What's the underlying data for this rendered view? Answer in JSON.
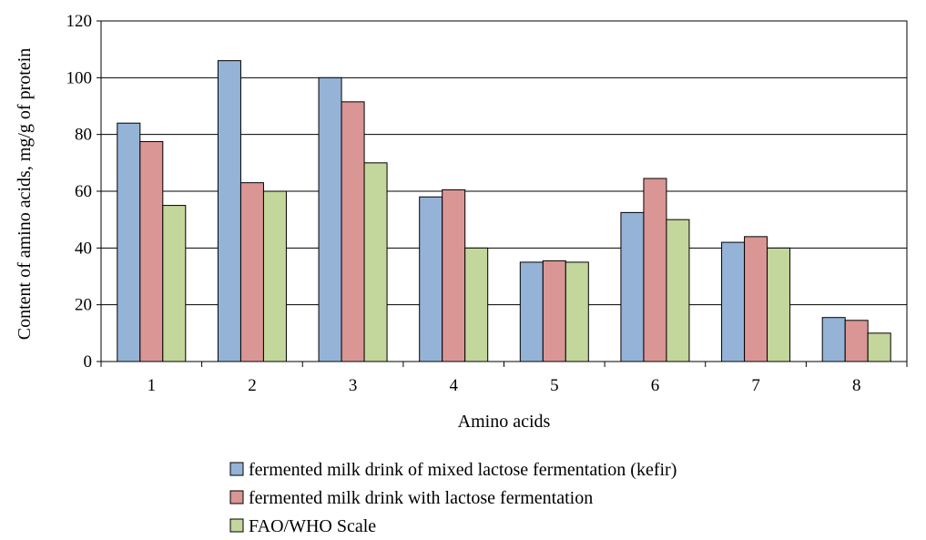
{
  "chart_data": {
    "type": "bar",
    "title": "",
    "xlabel": "Amino acids",
    "ylabel": "Content of amino acids, mg/g of protein",
    "categories": [
      "1",
      "2",
      "3",
      "4",
      "5",
      "6",
      "7",
      "8"
    ],
    "ylim": [
      0,
      120
    ],
    "yticks": [
      0,
      20,
      40,
      60,
      80,
      100,
      120
    ],
    "grid": true,
    "legend_position": "bottom",
    "series": [
      {
        "name": "fermented milk drink of mixed lactose fermentation (kefir)",
        "color": "#95b3d7",
        "values": [
          84,
          106,
          100,
          58,
          35,
          52.5,
          42,
          15.5
        ]
      },
      {
        "name": "fermented milk drink with lactose fermentation",
        "color": "#d99694",
        "values": [
          77.5,
          63,
          91.5,
          60.5,
          35.5,
          64.5,
          44,
          14.5
        ]
      },
      {
        "name": "FAO/WHO Scale",
        "color": "#c3d69b",
        "values": [
          55,
          60,
          70,
          40,
          35,
          50,
          40,
          10
        ]
      }
    ]
  }
}
